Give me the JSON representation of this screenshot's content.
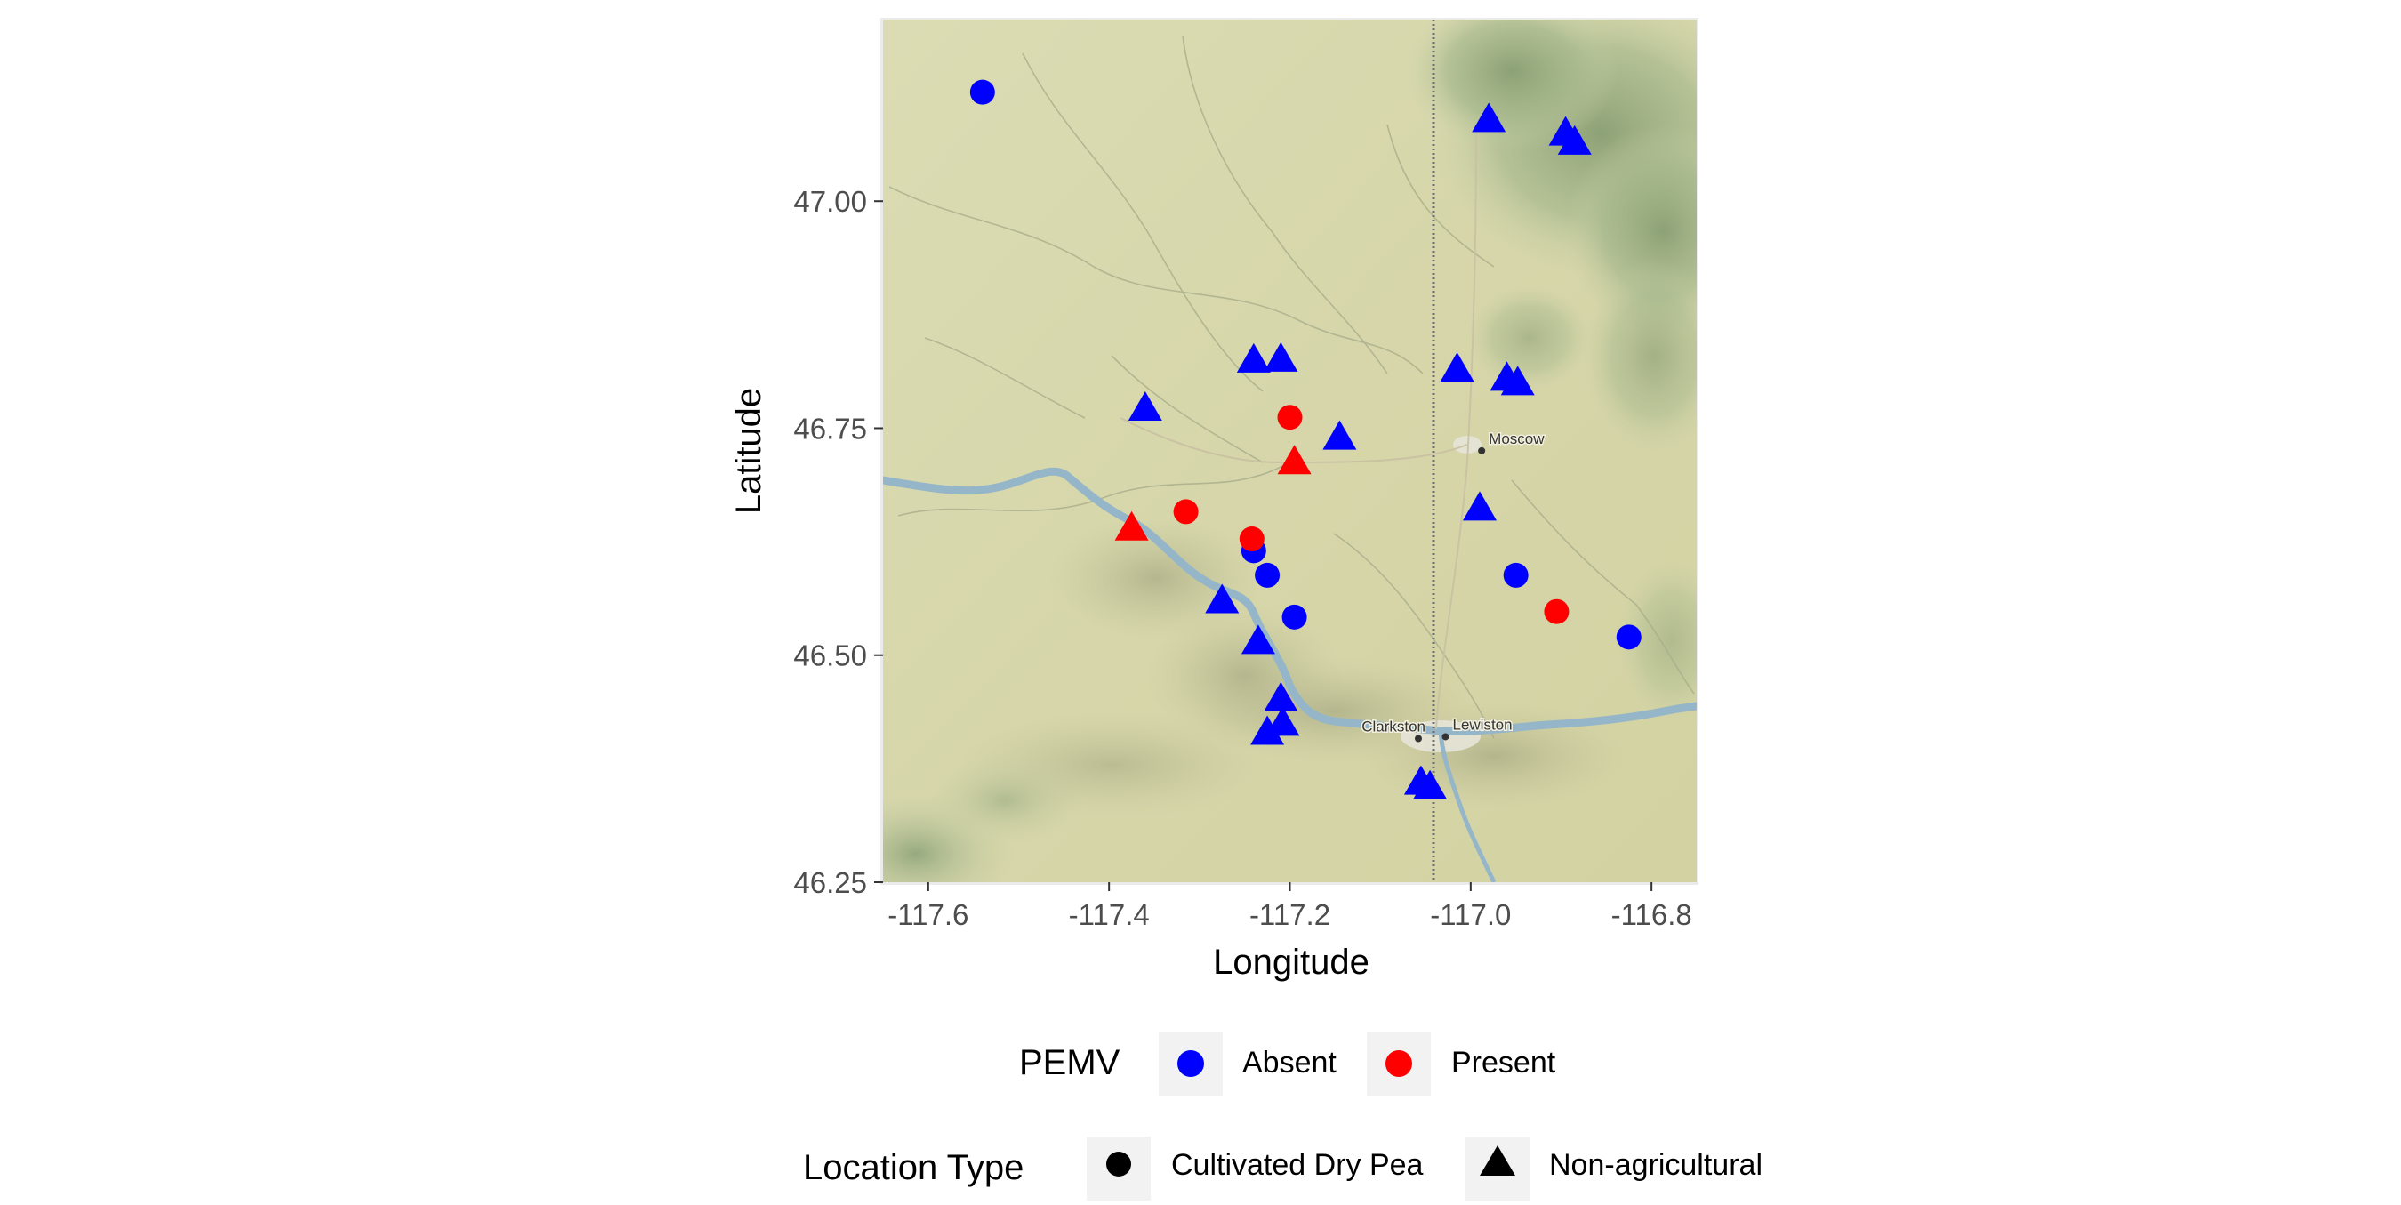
{
  "chart_data": {
    "type": "scatter",
    "title": "",
    "xlabel": "Longitude",
    "ylabel": "Latitude",
    "xlim": [
      -117.65,
      -116.75
    ],
    "ylim": [
      46.25,
      47.2
    ],
    "x_ticks": [
      {
        "value": -117.6,
        "label": "-117.6"
      },
      {
        "value": -117.4,
        "label": "-117.4"
      },
      {
        "value": -117.2,
        "label": "-117.2"
      },
      {
        "value": -117.0,
        "label": "-117.0"
      },
      {
        "value": -116.8,
        "label": "-116.8"
      }
    ],
    "y_ticks": [
      {
        "value": 46.25,
        "label": "46.25"
      },
      {
        "value": 46.5,
        "label": "46.50"
      },
      {
        "value": 46.75,
        "label": "46.75"
      },
      {
        "value": 47.0,
        "label": "47.00"
      }
    ],
    "basemap": "terrain",
    "colors": {
      "Absent": "#0000ff",
      "Present": "#ff0000"
    },
    "legends": [
      {
        "title": "PEMV",
        "type": "color",
        "items": [
          {
            "label": "Absent",
            "key": "Absent"
          },
          {
            "label": "Present",
            "key": "Present"
          }
        ]
      },
      {
        "title": "Location Type",
        "type": "shape",
        "items": [
          {
            "label": "Cultivated Dry Pea",
            "shape": "circle"
          },
          {
            "label": "Non-agricultural",
            "shape": "triangle"
          }
        ]
      }
    ],
    "map_labels": [
      {
        "text": "Moscow",
        "lon": -116.98,
        "lat": 46.733
      },
      {
        "text": "Lewiston",
        "lon": -117.02,
        "lat": 46.418
      },
      {
        "text": "Clarkston",
        "lon": -117.05,
        "lat": 46.416
      }
    ],
    "points": [
      {
        "lon": -117.54,
        "lat": 47.12,
        "pemv": "Absent",
        "type": "Cultivated Dry Pea"
      },
      {
        "lon": -117.24,
        "lat": 46.615,
        "pemv": "Absent",
        "type": "Cultivated Dry Pea"
      },
      {
        "lon": -117.225,
        "lat": 46.588,
        "pemv": "Absent",
        "type": "Cultivated Dry Pea"
      },
      {
        "lon": -117.195,
        "lat": 46.542,
        "pemv": "Absent",
        "type": "Cultivated Dry Pea"
      },
      {
        "lon": -116.95,
        "lat": 46.588,
        "pemv": "Absent",
        "type": "Cultivated Dry Pea"
      },
      {
        "lon": -116.825,
        "lat": 46.52,
        "pemv": "Absent",
        "type": "Cultivated Dry Pea"
      },
      {
        "lon": -117.2,
        "lat": 46.762,
        "pemv": "Present",
        "type": "Cultivated Dry Pea"
      },
      {
        "lon": -117.315,
        "lat": 46.658,
        "pemv": "Present",
        "type": "Cultivated Dry Pea"
      },
      {
        "lon": -117.242,
        "lat": 46.628,
        "pemv": "Present",
        "type": "Cultivated Dry Pea"
      },
      {
        "lon": -116.905,
        "lat": 46.548,
        "pemv": "Present",
        "type": "Cultivated Dry Pea"
      },
      {
        "lon": -117.195,
        "lat": 46.713,
        "pemv": "Present",
        "type": "Non-agricultural"
      },
      {
        "lon": -117.375,
        "lat": 46.64,
        "pemv": "Present",
        "type": "Non-agricultural"
      },
      {
        "lon": -116.98,
        "lat": 47.09,
        "pemv": "Absent",
        "type": "Non-agricultural"
      },
      {
        "lon": -116.895,
        "lat": 47.075,
        "pemv": "Absent",
        "type": "Non-agricultural"
      },
      {
        "lon": -116.885,
        "lat": 47.065,
        "pemv": "Absent",
        "type": "Non-agricultural"
      },
      {
        "lon": -117.24,
        "lat": 46.825,
        "pemv": "Absent",
        "type": "Non-agricultural"
      },
      {
        "lon": -117.21,
        "lat": 46.826,
        "pemv": "Absent",
        "type": "Non-agricultural"
      },
      {
        "lon": -117.015,
        "lat": 46.815,
        "pemv": "Absent",
        "type": "Non-agricultural"
      },
      {
        "lon": -116.96,
        "lat": 46.805,
        "pemv": "Absent",
        "type": "Non-agricultural"
      },
      {
        "lon": -116.948,
        "lat": 46.8,
        "pemv": "Absent",
        "type": "Non-agricultural"
      },
      {
        "lon": -117.36,
        "lat": 46.772,
        "pemv": "Absent",
        "type": "Non-agricultural"
      },
      {
        "lon": -117.145,
        "lat": 46.74,
        "pemv": "Absent",
        "type": "Non-agricultural"
      },
      {
        "lon": -116.99,
        "lat": 46.662,
        "pemv": "Absent",
        "type": "Non-agricultural"
      },
      {
        "lon": -117.275,
        "lat": 46.56,
        "pemv": "Absent",
        "type": "Non-agricultural"
      },
      {
        "lon": -117.235,
        "lat": 46.515,
        "pemv": "Absent",
        "type": "Non-agricultural"
      },
      {
        "lon": -117.21,
        "lat": 46.452,
        "pemv": "Absent",
        "type": "Non-agricultural"
      },
      {
        "lon": -117.208,
        "lat": 46.425,
        "pemv": "Absent",
        "type": "Non-agricultural"
      },
      {
        "lon": -117.225,
        "lat": 46.415,
        "pemv": "Absent",
        "type": "Non-agricultural"
      },
      {
        "lon": -117.055,
        "lat": 46.36,
        "pemv": "Absent",
        "type": "Non-agricultural"
      },
      {
        "lon": -117.045,
        "lat": 46.355,
        "pemv": "Absent",
        "type": "Non-agricultural"
      }
    ]
  }
}
